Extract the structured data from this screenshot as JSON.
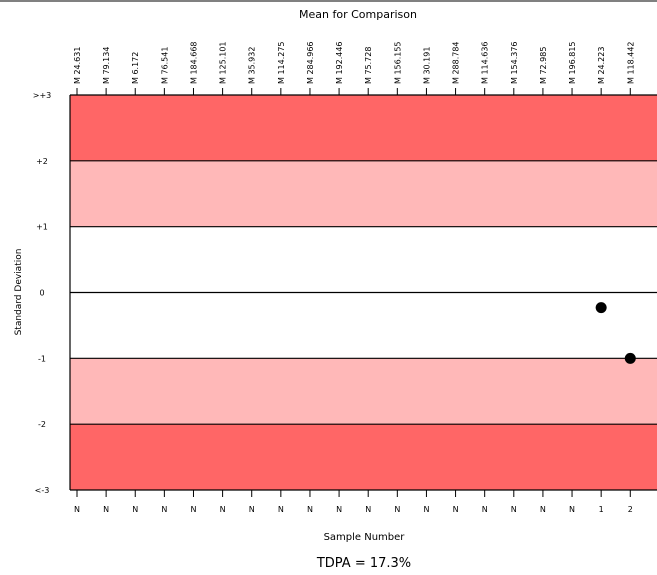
{
  "chart_data": {
    "type": "scatter",
    "title": "Mean for Comparison",
    "xlabel": "Sample Number",
    "ylabel": "Standard Deviation",
    "footer": "TDPA = 17.3%",
    "ylim": [
      -3,
      3
    ],
    "y_ticks": [
      {
        "value": 3,
        "label": ">+3"
      },
      {
        "value": 2,
        "label": "+2"
      },
      {
        "value": 1,
        "label": "+1"
      },
      {
        "value": 0,
        "label": "0"
      },
      {
        "value": -1,
        "label": "-1"
      },
      {
        "value": -2,
        "label": "-2"
      },
      {
        "value": -3,
        "label": "<-3"
      }
    ],
    "bands": [
      {
        "from": 2,
        "to": 3,
        "color": "#ff6666"
      },
      {
        "from": 1,
        "to": 2,
        "color": "#ffb8b8"
      },
      {
        "from": -1,
        "to": 1,
        "color": "#ffffff"
      },
      {
        "from": -2,
        "to": -1,
        "color": "#ffb8b8"
      },
      {
        "from": -3,
        "to": -2,
        "color": "#ff6666"
      }
    ],
    "columns": [
      {
        "mean": "M 24.631",
        "sample": "N"
      },
      {
        "mean": "M 79.134",
        "sample": "N"
      },
      {
        "mean": "M 6.172",
        "sample": "N"
      },
      {
        "mean": "M 76.541",
        "sample": "N"
      },
      {
        "mean": "M 184.668",
        "sample": "N"
      },
      {
        "mean": "M 125.101",
        "sample": "N"
      },
      {
        "mean": "M 35.932",
        "sample": "N"
      },
      {
        "mean": "M 114.275",
        "sample": "N"
      },
      {
        "mean": "M 284.966",
        "sample": "N"
      },
      {
        "mean": "M 192.446",
        "sample": "N"
      },
      {
        "mean": "M 75.728",
        "sample": "N"
      },
      {
        "mean": "M 156.155",
        "sample": "N"
      },
      {
        "mean": "M 30.191",
        "sample": "N"
      },
      {
        "mean": "M 288.784",
        "sample": "N"
      },
      {
        "mean": "M 114.636",
        "sample": "N"
      },
      {
        "mean": "M 154.376",
        "sample": "N"
      },
      {
        "mean": "M 72.985",
        "sample": "N"
      },
      {
        "mean": "M 196.815",
        "sample": "N"
      },
      {
        "mean": "M 24.223",
        "sample": "1"
      },
      {
        "mean": "M 118.442",
        "sample": "2"
      }
    ],
    "points": [
      {
        "column": 19,
        "y": -0.23
      },
      {
        "column": 20,
        "y": -1.0
      }
    ]
  }
}
